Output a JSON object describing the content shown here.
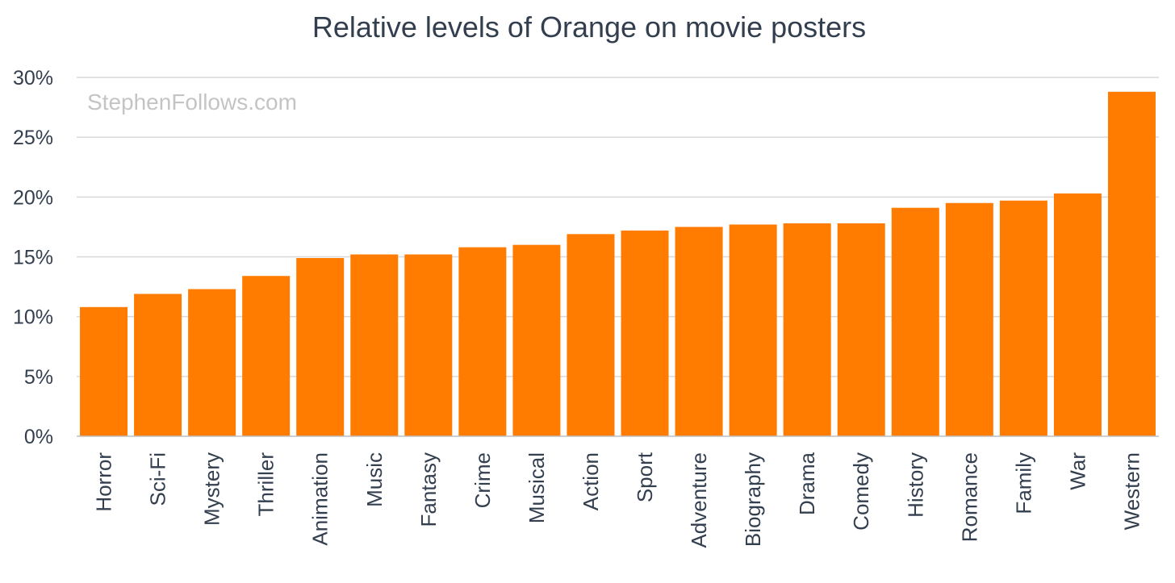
{
  "chart_data": {
    "type": "bar",
    "title": "Relative levels of Orange on movie posters",
    "xlabel": "",
    "ylabel": "",
    "watermark": "StephenFollows.com",
    "bar_color": "#ff7c00",
    "ylim": [
      0,
      30
    ],
    "yticks": [
      0,
      5,
      10,
      15,
      20,
      25,
      30
    ],
    "ytick_labels": [
      "0%",
      "5%",
      "10%",
      "15%",
      "20%",
      "25%",
      "30%"
    ],
    "grid": true,
    "categories": [
      "Horror",
      "Sci-Fi",
      "Mystery",
      "Thriller",
      "Animation",
      "Music",
      "Fantasy",
      "Crime",
      "Musical",
      "Action",
      "Sport",
      "Adventure",
      "Biography",
      "Drama",
      "Comedy",
      "History",
      "Romance",
      "Family",
      "War",
      "Western"
    ],
    "values": [
      10.8,
      11.9,
      12.3,
      13.4,
      14.9,
      15.2,
      15.2,
      15.8,
      16.0,
      16.9,
      17.2,
      17.5,
      17.7,
      17.8,
      17.8,
      19.1,
      19.5,
      19.7,
      20.3,
      28.8
    ]
  }
}
